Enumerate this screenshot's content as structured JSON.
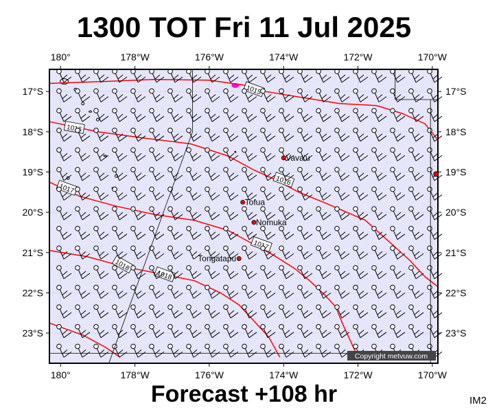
{
  "title": "1300 TOT Fri 11 Jul 2025",
  "subtitle": "Forecast +108 hr",
  "corner_label": "IM2",
  "copyright": "Copyright metvuw.com",
  "axes": {
    "lon_ticks": [
      "180°",
      "178°W",
      "176°W",
      "174°W",
      "172°W",
      "170°W"
    ],
    "lon_values": [
      180,
      178,
      176,
      174,
      172,
      170
    ],
    "lat_ticks": [
      "17°S",
      "18°S",
      "19°S",
      "20°S",
      "21°S",
      "22°S",
      "23°S"
    ],
    "lat_values": [
      17,
      18,
      19,
      20,
      21,
      22,
      23
    ],
    "lon_range_west": [
      180.3,
      169.85
    ],
    "lat_range_south": [
      16.45,
      23.75
    ]
  },
  "colors": {
    "sea": "#e6e6fa",
    "isobar": "#ff0000",
    "place_dot": "#ff0000",
    "frame": "#000000"
  },
  "isobars": [
    {
      "label": "1015",
      "points": [
        [
          180.3,
          16.8
        ],
        [
          178.8,
          16.75
        ],
        [
          177.5,
          16.7
        ],
        [
          176,
          16.72
        ],
        [
          175.0,
          16.85
        ],
        [
          174.5,
          17.0
        ],
        [
          173.5,
          17.15
        ],
        [
          172.5,
          17.3
        ],
        [
          171.5,
          17.35
        ],
        [
          170.8,
          17.55
        ],
        [
          170.2,
          17.8
        ],
        [
          169.85,
          18.2
        ]
      ]
    },
    {
      "label": "1016",
      "points": [
        [
          180.3,
          17.75
        ],
        [
          179.0,
          18.0
        ],
        [
          177.8,
          18.15
        ],
        [
          176.5,
          18.3
        ],
        [
          175.5,
          18.6
        ],
        [
          174.8,
          18.95
        ],
        [
          174.2,
          19.2
        ],
        [
          173.6,
          19.5
        ],
        [
          172.8,
          19.8
        ],
        [
          171.8,
          20.2
        ],
        [
          171.2,
          20.7
        ],
        [
          170.6,
          21.2
        ],
        [
          170.2,
          21.6
        ],
        [
          169.85,
          21.85
        ]
      ]
    },
    {
      "label": "1017",
      "points": [
        [
          180.3,
          19.25
        ],
        [
          179.5,
          19.6
        ],
        [
          178.5,
          19.85
        ],
        [
          177.5,
          20.05
        ],
        [
          176.4,
          20.2
        ],
        [
          175.5,
          20.45
        ],
        [
          174.9,
          20.75
        ],
        [
          174.3,
          21.05
        ],
        [
          173.7,
          21.4
        ],
        [
          173.3,
          21.7
        ],
        [
          172.9,
          22.05
        ],
        [
          172.6,
          22.35
        ],
        [
          172.4,
          22.8
        ],
        [
          172.2,
          23.2
        ],
        [
          172.0,
          23.6
        ]
      ]
    },
    {
      "label": "1018",
      "points": [
        [
          180.3,
          20.95
        ],
        [
          179.3,
          21.1
        ],
        [
          178.3,
          21.35
        ],
        [
          177.2,
          21.55
        ],
        [
          176.4,
          21.7
        ],
        [
          175.7,
          22.0
        ],
        [
          175.2,
          22.3
        ],
        [
          174.8,
          22.7
        ],
        [
          174.4,
          23.1
        ],
        [
          174.1,
          23.6
        ]
      ]
    },
    {
      "label": "",
      "points": [
        [
          180.3,
          22.75
        ],
        [
          179.4,
          23.05
        ],
        [
          178.8,
          23.35
        ],
        [
          178.4,
          23.6
        ]
      ]
    }
  ],
  "places": [
    {
      "name": "Vava'u",
      "lon": 174.0,
      "lat": 18.65
    },
    {
      "name": "Tofua",
      "lon": 175.1,
      "lat": 19.75
    },
    {
      "name": "Nomuka",
      "lon": 174.8,
      "lat": 20.25
    },
    {
      "name": "Tongatapu",
      "lon": 175.2,
      "lat": 21.15
    }
  ],
  "extra_markers": [
    {
      "lon": 169.9,
      "lat": 19.05
    }
  ]
}
